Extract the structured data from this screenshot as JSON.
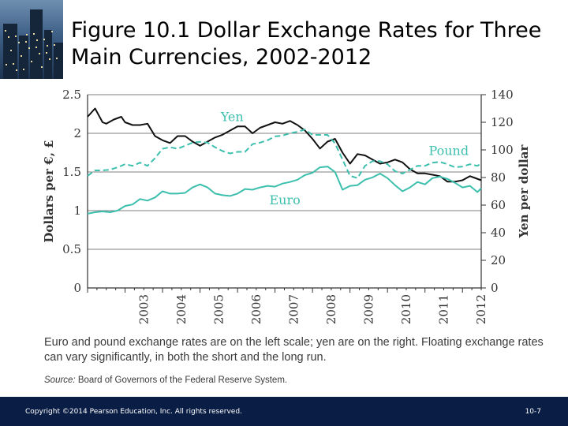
{
  "title": "Figure 10.1  Dollar Exchange Rates for Three Main Currencies, 2002-2012",
  "caption": "Euro and pound exchange rates are on the left scale; yen are on the right. Floating exchange rates can vary significantly, in both the short and the long run.",
  "source": {
    "label": "Source:",
    "text": "Board of Governors of the Federal Reserve System."
  },
  "footer": {
    "copyright": "Copyright ©2014 Pearson Education, Inc. All rights reserved.",
    "page": "10-7"
  },
  "colors": {
    "yen": "#111111",
    "pound": "#3dbfad",
    "euro": "#3dbfad",
    "footer_bg": "#0a1e45",
    "axis": "#333333"
  },
  "chart_data": {
    "type": "line",
    "x_label_ticks": [
      "2003",
      "2004",
      "2005",
      "2006",
      "2007",
      "2008",
      "2009",
      "2010",
      "2011",
      "2012"
    ],
    "xlim": [
      2002.0,
      2012.5
    ],
    "left_axis": {
      "label": "Dollars per €, £",
      "ylim": [
        0,
        2.5
      ],
      "ticks": [
        "0",
        "0.5",
        "1",
        "1.5",
        "2",
        "2.5"
      ]
    },
    "right_axis": {
      "label": "Yen per dollar",
      "ylim": [
        0,
        140
      ],
      "ticks": [
        "0",
        "20",
        "40",
        "60",
        "80",
        "100",
        "120",
        "140"
      ]
    },
    "grid": true,
    "series": [
      {
        "name": "Yen",
        "axis": "right",
        "style": "solid",
        "points": [
          [
            2002.0,
            124
          ],
          [
            2002.2,
            130
          ],
          [
            2002.4,
            120
          ],
          [
            2002.5,
            119
          ],
          [
            2002.7,
            122
          ],
          [
            2002.9,
            124
          ],
          [
            2003.0,
            120
          ],
          [
            2003.2,
            118
          ],
          [
            2003.4,
            118
          ],
          [
            2003.6,
            119
          ],
          [
            2003.8,
            110
          ],
          [
            2004.0,
            107
          ],
          [
            2004.2,
            105
          ],
          [
            2004.4,
            110
          ],
          [
            2004.6,
            110
          ],
          [
            2004.8,
            106
          ],
          [
            2005.0,
            103
          ],
          [
            2005.2,
            106
          ],
          [
            2005.4,
            109
          ],
          [
            2005.6,
            111
          ],
          [
            2005.8,
            114
          ],
          [
            2006.0,
            117
          ],
          [
            2006.2,
            117
          ],
          [
            2006.4,
            112
          ],
          [
            2006.6,
            116
          ],
          [
            2006.8,
            118
          ],
          [
            2007.0,
            120
          ],
          [
            2007.2,
            119
          ],
          [
            2007.4,
            121
          ],
          [
            2007.6,
            118
          ],
          [
            2007.8,
            114
          ],
          [
            2008.0,
            108
          ],
          [
            2008.2,
            101
          ],
          [
            2008.4,
            106
          ],
          [
            2008.6,
            108
          ],
          [
            2008.8,
            98
          ],
          [
            2009.0,
            90
          ],
          [
            2009.2,
            97
          ],
          [
            2009.4,
            96
          ],
          [
            2009.6,
            93
          ],
          [
            2009.8,
            90
          ],
          [
            2010.0,
            91
          ],
          [
            2010.2,
            93
          ],
          [
            2010.4,
            91
          ],
          [
            2010.6,
            86
          ],
          [
            2010.8,
            83
          ],
          [
            2011.0,
            83
          ],
          [
            2011.2,
            82
          ],
          [
            2011.4,
            81
          ],
          [
            2011.6,
            77
          ],
          [
            2011.8,
            77
          ],
          [
            2012.0,
            78
          ],
          [
            2012.2,
            81
          ],
          [
            2012.3,
            80
          ],
          [
            2012.5,
            78
          ]
        ]
      },
      {
        "name": "Pound",
        "axis": "left",
        "style": "dashed",
        "points": [
          [
            2002.0,
            1.45
          ],
          [
            2002.2,
            1.52
          ],
          [
            2002.4,
            1.52
          ],
          [
            2002.6,
            1.53
          ],
          [
            2002.8,
            1.56
          ],
          [
            2003.0,
            1.6
          ],
          [
            2003.2,
            1.58
          ],
          [
            2003.4,
            1.62
          ],
          [
            2003.6,
            1.58
          ],
          [
            2003.8,
            1.68
          ],
          [
            2004.0,
            1.8
          ],
          [
            2004.2,
            1.82
          ],
          [
            2004.4,
            1.8
          ],
          [
            2004.6,
            1.84
          ],
          [
            2004.8,
            1.88
          ],
          [
            2005.0,
            1.89
          ],
          [
            2005.2,
            1.88
          ],
          [
            2005.4,
            1.82
          ],
          [
            2005.6,
            1.77
          ],
          [
            2005.8,
            1.74
          ],
          [
            2006.0,
            1.76
          ],
          [
            2006.2,
            1.76
          ],
          [
            2006.4,
            1.86
          ],
          [
            2006.6,
            1.88
          ],
          [
            2006.8,
            1.91
          ],
          [
            2007.0,
            1.96
          ],
          [
            2007.2,
            1.97
          ],
          [
            2007.4,
            2.0
          ],
          [
            2007.6,
            2.02
          ],
          [
            2007.8,
            2.05
          ],
          [
            2008.0,
            1.98
          ],
          [
            2008.2,
            1.98
          ],
          [
            2008.4,
            1.98
          ],
          [
            2008.6,
            1.87
          ],
          [
            2008.8,
            1.66
          ],
          [
            2009.0,
            1.45
          ],
          [
            2009.2,
            1.42
          ],
          [
            2009.4,
            1.58
          ],
          [
            2009.6,
            1.64
          ],
          [
            2009.8,
            1.64
          ],
          [
            2010.0,
            1.6
          ],
          [
            2010.2,
            1.51
          ],
          [
            2010.4,
            1.48
          ],
          [
            2010.6,
            1.53
          ],
          [
            2010.8,
            1.58
          ],
          [
            2011.0,
            1.58
          ],
          [
            2011.2,
            1.62
          ],
          [
            2011.4,
            1.63
          ],
          [
            2011.6,
            1.6
          ],
          [
            2011.8,
            1.56
          ],
          [
            2012.0,
            1.57
          ],
          [
            2012.2,
            1.6
          ],
          [
            2012.4,
            1.58
          ],
          [
            2012.5,
            1.61
          ]
        ]
      },
      {
        "name": "Euro",
        "axis": "left",
        "style": "solid",
        "points": [
          [
            2002.0,
            0.96
          ],
          [
            2002.2,
            0.98
          ],
          [
            2002.4,
            0.99
          ],
          [
            2002.6,
            0.98
          ],
          [
            2002.8,
            1.0
          ],
          [
            2003.0,
            1.06
          ],
          [
            2003.2,
            1.08
          ],
          [
            2003.4,
            1.15
          ],
          [
            2003.6,
            1.13
          ],
          [
            2003.8,
            1.17
          ],
          [
            2004.0,
            1.25
          ],
          [
            2004.2,
            1.22
          ],
          [
            2004.4,
            1.22
          ],
          [
            2004.6,
            1.23
          ],
          [
            2004.8,
            1.3
          ],
          [
            2005.0,
            1.34
          ],
          [
            2005.2,
            1.3
          ],
          [
            2005.4,
            1.22
          ],
          [
            2005.6,
            1.2
          ],
          [
            2005.8,
            1.19
          ],
          [
            2006.0,
            1.22
          ],
          [
            2006.2,
            1.28
          ],
          [
            2006.4,
            1.27
          ],
          [
            2006.6,
            1.3
          ],
          [
            2006.8,
            1.32
          ],
          [
            2007.0,
            1.31
          ],
          [
            2007.2,
            1.35
          ],
          [
            2007.4,
            1.37
          ],
          [
            2007.6,
            1.4
          ],
          [
            2007.8,
            1.46
          ],
          [
            2008.0,
            1.49
          ],
          [
            2008.2,
            1.56
          ],
          [
            2008.4,
            1.57
          ],
          [
            2008.6,
            1.5
          ],
          [
            2008.8,
            1.27
          ],
          [
            2009.0,
            1.32
          ],
          [
            2009.2,
            1.33
          ],
          [
            2009.4,
            1.4
          ],
          [
            2009.6,
            1.43
          ],
          [
            2009.8,
            1.48
          ],
          [
            2010.0,
            1.42
          ],
          [
            2010.2,
            1.33
          ],
          [
            2010.4,
            1.25
          ],
          [
            2010.6,
            1.3
          ],
          [
            2010.8,
            1.37
          ],
          [
            2011.0,
            1.34
          ],
          [
            2011.2,
            1.42
          ],
          [
            2011.4,
            1.44
          ],
          [
            2011.6,
            1.41
          ],
          [
            2011.8,
            1.36
          ],
          [
            2012.0,
            1.3
          ],
          [
            2012.2,
            1.32
          ],
          [
            2012.4,
            1.24
          ],
          [
            2012.5,
            1.29
          ]
        ]
      }
    ]
  }
}
